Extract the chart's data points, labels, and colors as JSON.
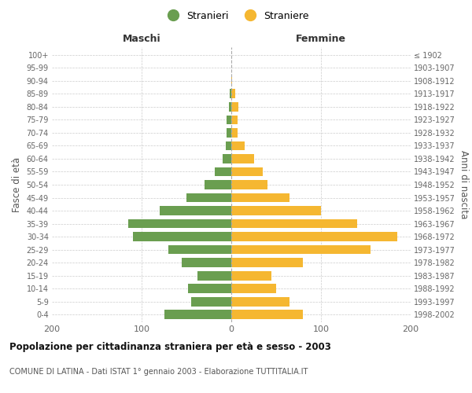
{
  "age_groups": [
    "100+",
    "95-99",
    "90-94",
    "85-89",
    "80-84",
    "75-79",
    "70-74",
    "65-69",
    "60-64",
    "55-59",
    "50-54",
    "45-49",
    "40-44",
    "35-39",
    "30-34",
    "25-29",
    "20-24",
    "15-19",
    "10-14",
    "5-9",
    "0-4"
  ],
  "birth_years": [
    "≤ 1902",
    "1903-1907",
    "1908-1912",
    "1913-1917",
    "1918-1922",
    "1923-1927",
    "1928-1932",
    "1933-1937",
    "1938-1942",
    "1943-1947",
    "1948-1952",
    "1953-1957",
    "1958-1962",
    "1963-1967",
    "1968-1972",
    "1973-1977",
    "1978-1982",
    "1983-1987",
    "1988-1992",
    "1993-1997",
    "1998-2002"
  ],
  "males": [
    0,
    0,
    0,
    2,
    3,
    5,
    5,
    6,
    10,
    18,
    30,
    50,
    80,
    115,
    110,
    70,
    55,
    38,
    48,
    45,
    75
  ],
  "females": [
    0,
    0,
    1,
    4,
    8,
    7,
    7,
    15,
    25,
    35,
    40,
    65,
    100,
    140,
    185,
    155,
    80,
    45,
    50,
    65,
    80
  ],
  "male_color": "#6a9e50",
  "female_color": "#f5b731",
  "male_label": "Stranieri",
  "female_label": "Straniere",
  "title": "Popolazione per cittadinanza straniera per età e sesso - 2003",
  "subtitle": "COMUNE DI LATINA - Dati ISTAT 1° gennaio 2003 - Elaborazione TUTTITALIA.IT",
  "xlabel_left": "Maschi",
  "xlabel_right": "Femmine",
  "ylabel_left": "Fasce di età",
  "ylabel_right": "Anni di nascita",
  "xlim": 200,
  "background_color": "#ffffff",
  "grid_color": "#cccccc"
}
